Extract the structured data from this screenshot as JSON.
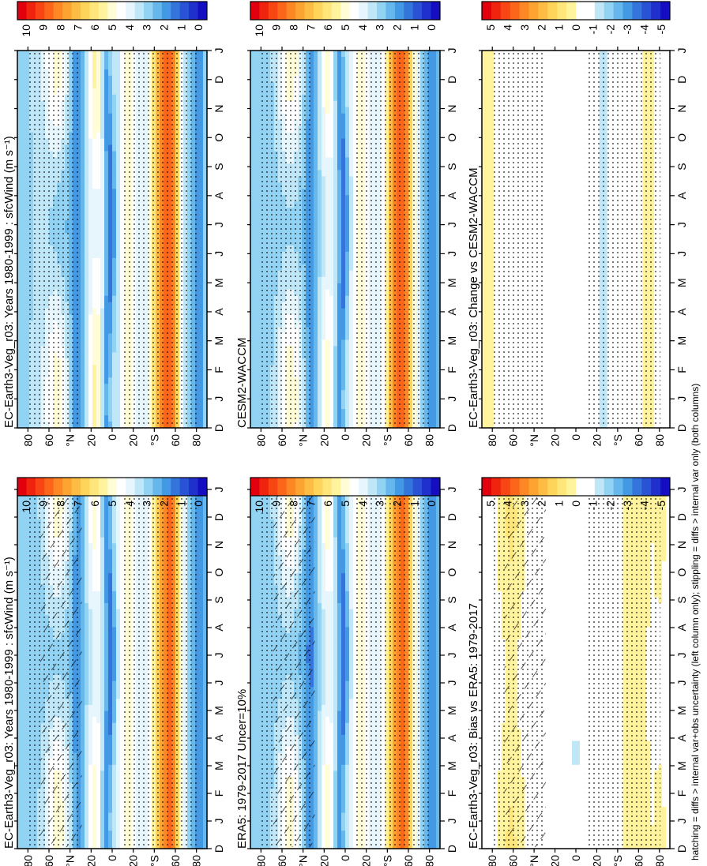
{
  "footnote": "hatching = diffs > internal var+obs uncertainty (left column only); stippling = diffs > internal var only (both columns)",
  "chart_data": [
    {
      "type": "heatmap",
      "title": "EC-Earth3-Veg_r03: Years 1980-1999 : sfcWind (m s⁻¹)",
      "x_ticks": [
        "D",
        "J",
        "F",
        "M",
        "A",
        "M",
        "J",
        "J",
        "A",
        "S",
        "O",
        "N",
        "D",
        "J"
      ],
      "y_ticks": [
        "80",
        "60",
        "°N",
        "20",
        "0",
        "20",
        "°S",
        "60",
        "80"
      ],
      "colorbar": [
        "10",
        "9",
        "8",
        "7",
        "6",
        "5",
        "4",
        "3",
        "2",
        "1",
        "0"
      ],
      "hatching": true
    },
    {
      "type": "heatmap",
      "title": "EC-Earth3-Veg_r03: Years 1980-1999 : sfcWind (m s⁻¹)",
      "x_ticks": [
        "D",
        "J",
        "F",
        "M",
        "A",
        "M",
        "J",
        "J",
        "A",
        "S",
        "O",
        "N",
        "D",
        "J"
      ],
      "y_ticks": [
        "80",
        "60",
        "°N",
        "20",
        "0",
        "20",
        "°S",
        "60",
        "80"
      ],
      "colorbar": [
        "10",
        "9",
        "8",
        "7",
        "6",
        "5",
        "4",
        "3",
        "2",
        "1",
        "0"
      ],
      "hatching": false
    },
    {
      "type": "heatmap",
      "title": "ERA5: 1979-2017 Uncer=10%",
      "x_ticks": [
        "D",
        "J",
        "F",
        "M",
        "A",
        "M",
        "J",
        "J",
        "A",
        "S",
        "O",
        "N",
        "D",
        "J"
      ],
      "y_ticks": [
        "80",
        "60",
        "°N",
        "20",
        "0",
        "20",
        "°S",
        "60",
        "80"
      ],
      "colorbar": [
        "10",
        "9",
        "8",
        "7",
        "6",
        "5",
        "4",
        "3",
        "2",
        "1",
        "0"
      ],
      "hatching": true
    },
    {
      "type": "heatmap",
      "title": "CESM2-WACCM",
      "x_ticks": [
        "D",
        "J",
        "F",
        "M",
        "A",
        "M",
        "J",
        "J",
        "A",
        "S",
        "O",
        "N",
        "D",
        "J"
      ],
      "y_ticks": [
        "80",
        "60",
        "°N",
        "20",
        "0",
        "20",
        "°S",
        "60",
        "80"
      ],
      "colorbar": [
        "10",
        "9",
        "8",
        "7",
        "6",
        "5",
        "4",
        "3",
        "2",
        "1",
        "0"
      ],
      "hatching": false
    },
    {
      "type": "heatmap",
      "title": "EC-Earth3-Veg_r03: Bias vs ERA5: 1979-2017",
      "x_ticks": [
        "D",
        "J",
        "F",
        "M",
        "A",
        "M",
        "J",
        "J",
        "A",
        "S",
        "O",
        "N",
        "D",
        "J"
      ],
      "y_ticks": [
        "80",
        "60",
        "°N",
        "20",
        "0",
        "20",
        "°S",
        "60",
        "80"
      ],
      "colorbar": [
        "5",
        "4",
        "3",
        "2",
        "1",
        "0",
        "-1",
        "-2",
        "-3",
        "-4",
        "-5"
      ],
      "hatching": true
    },
    {
      "type": "heatmap",
      "title": "EC-Earth3-Veg_r03: Change vs CESM2-WACCM",
      "x_ticks": [
        "D",
        "J",
        "F",
        "M",
        "A",
        "M",
        "J",
        "J",
        "A",
        "S",
        "O",
        "N",
        "D",
        "J"
      ],
      "y_ticks": [
        "80",
        "60",
        "°N",
        "20",
        "0",
        "20",
        "°S",
        "60",
        "80"
      ],
      "colorbar": [
        "5",
        "4",
        "3",
        "2",
        "1",
        "0",
        "-1",
        "-2",
        "-3",
        "-4",
        "-5"
      ],
      "hatching": false
    }
  ]
}
